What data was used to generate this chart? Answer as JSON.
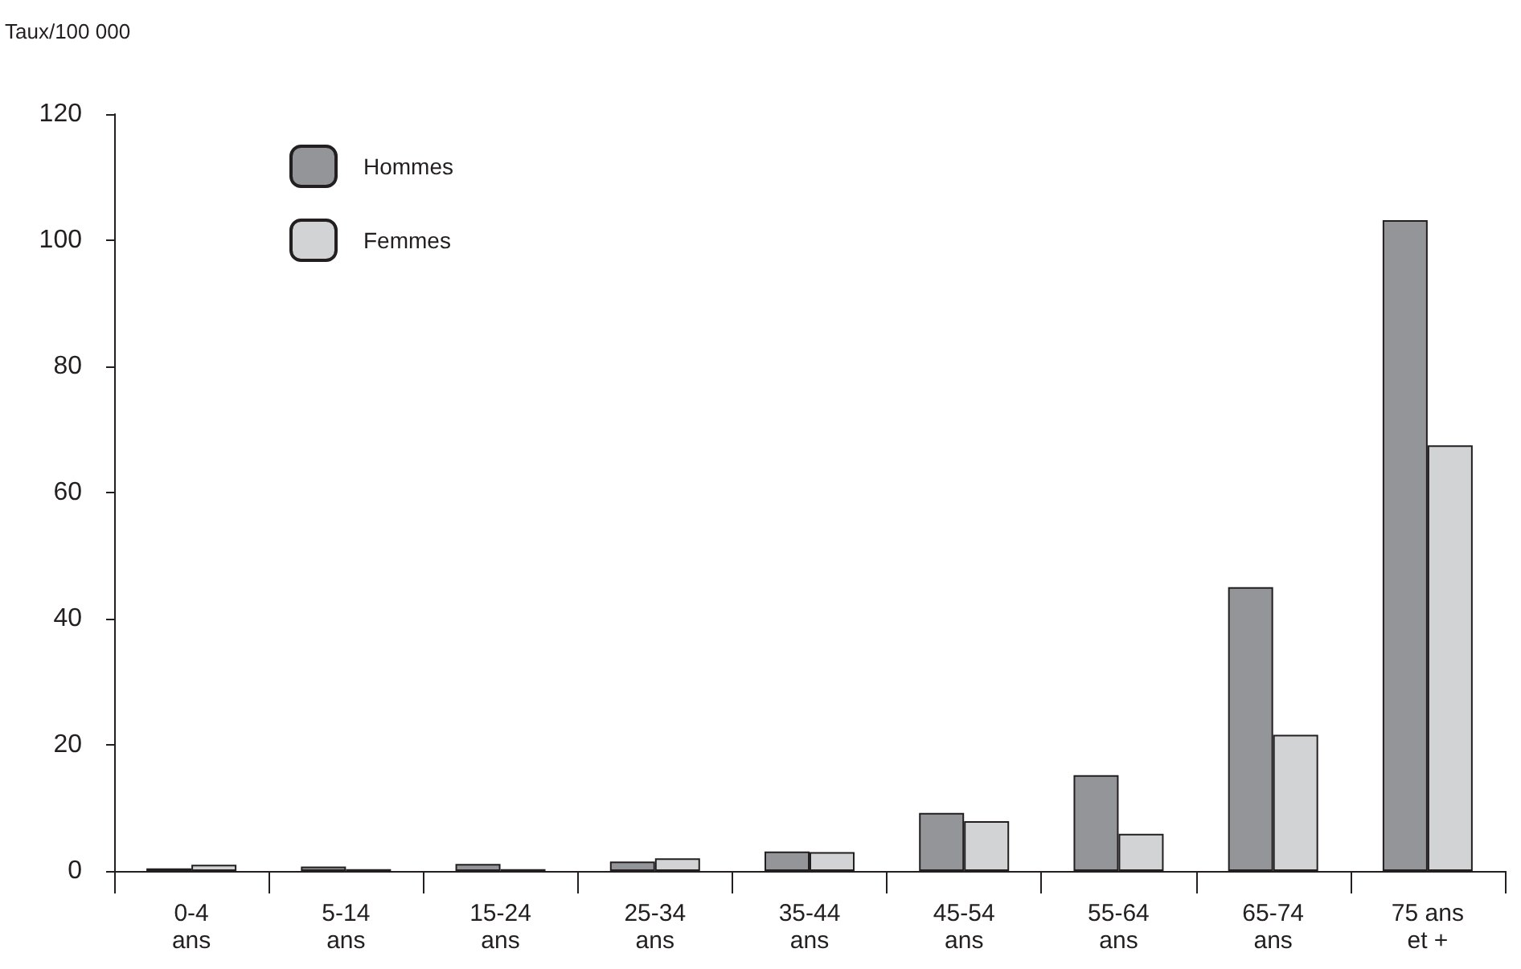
{
  "chart_data": {
    "type": "bar",
    "ylabel": "Taux/100 000",
    "categories": [
      "0-4\nans",
      "5-14\nans",
      "15-24\nans",
      "25-34\nans",
      "35-44\nans",
      "45-54\nans",
      "55-64\nans",
      "65-74\nans",
      "75 ans\net +"
    ],
    "series": [
      {
        "name": "Hommes",
        "color": "#939598",
        "values": [
          0.4,
          0.7,
          1.1,
          1.5,
          3.1,
          9.2,
          15.2,
          45,
          103.2
        ]
      },
      {
        "name": "Femmes",
        "color": "#d1d3d4",
        "values": [
          1,
          0.3,
          0.3,
          2,
          3,
          7.9,
          5.9,
          21.6,
          67.5
        ]
      }
    ],
    "ylim": [
      0,
      120
    ],
    "yticks": [
      0,
      20,
      40,
      60,
      80,
      100,
      120
    ],
    "grid": false,
    "legend": "top left"
  }
}
